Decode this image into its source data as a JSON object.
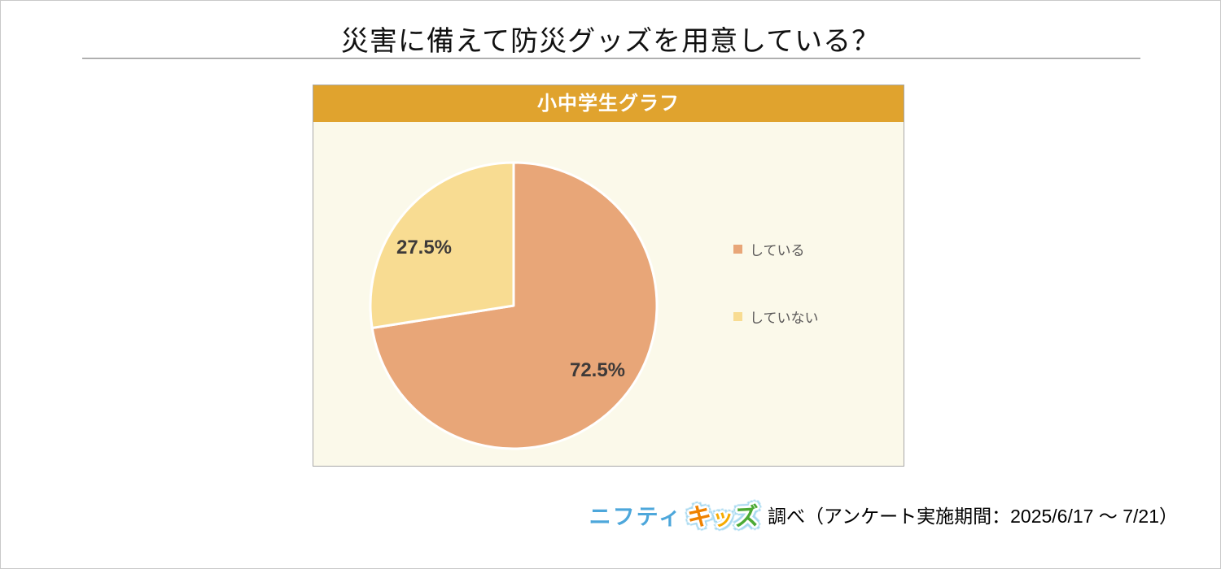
{
  "page": {
    "title": "災害に備えて防災グッズを用意している？"
  },
  "card": {
    "header": "小中学生グラフ"
  },
  "chart_data": {
    "type": "pie",
    "title": "小中学生グラフ",
    "start_angle_deg": 0,
    "direction": "clockwise",
    "legend_position": "right",
    "slices": [
      {
        "name": "している",
        "value": 72.5,
        "label": "72.5%",
        "color": "#e8a678"
      },
      {
        "name": "していない",
        "value": 27.5,
        "label": "27.5%",
        "color": "#f8dc92"
      }
    ]
  },
  "footer": {
    "source_part1": "ニフティ",
    "source_part2": [
      {
        "char": "キ",
        "color": "#ef8200"
      },
      {
        "char": "ッ",
        "color": "#f6ab00"
      },
      {
        "char": "ズ",
        "color": "#4caa35"
      }
    ],
    "note": "調べ（アンケート実施期間：2025/6/17 ～ 7/21）"
  },
  "colors": {
    "card_header_bg": "#e0a32e",
    "card_body_bg": "#fbf9ea",
    "slice_label_text": "#3e3a39",
    "legend_text": "#595757",
    "divider": "#8a8a8a",
    "logo_blue": "#4da7db"
  }
}
